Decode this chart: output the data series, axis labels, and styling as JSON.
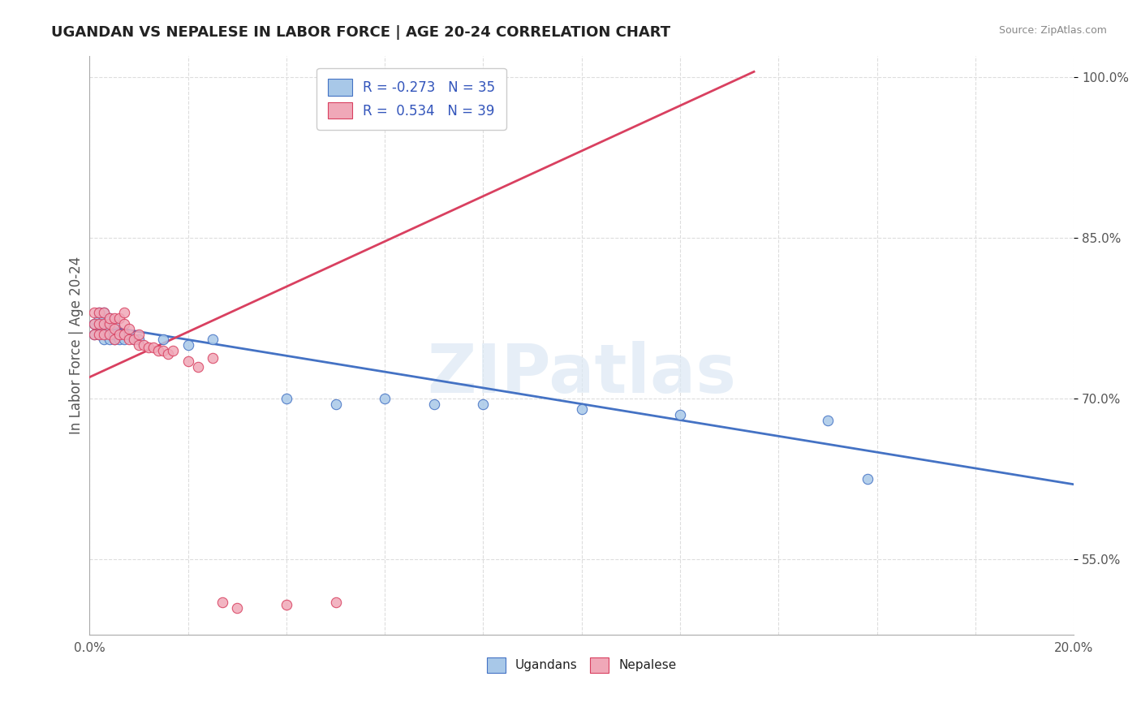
{
  "title": "UGANDAN VS NEPALESE IN LABOR FORCE | AGE 20-24 CORRELATION CHART",
  "source_text": "Source: ZipAtlas.com",
  "ylabel": "In Labor Force | Age 20-24",
  "xlim": [
    0.0,
    0.2
  ],
  "ylim": [
    0.48,
    1.02
  ],
  "xticks": [
    0.0,
    0.02,
    0.04,
    0.06,
    0.08,
    0.1,
    0.12,
    0.14,
    0.16,
    0.18,
    0.2
  ],
  "yticks": [
    0.55,
    0.7,
    0.85,
    1.0
  ],
  "xticklabels": [
    "0.0%",
    "",
    "",
    "",
    "",
    "",
    "",
    "",
    "",
    "",
    "20.0%"
  ],
  "yticklabels": [
    "55.0%",
    "70.0%",
    "85.0%",
    "100.0%"
  ],
  "ugandan_color": "#a8c8e8",
  "nepalese_color": "#f0a8b8",
  "ugandan_line_color": "#4472c4",
  "nepalese_line_color": "#d94060",
  "watermark": "ZIPatlas",
  "ugandan_scatter_x": [
    0.001,
    0.001,
    0.002,
    0.002,
    0.002,
    0.002,
    0.003,
    0.003,
    0.003,
    0.003,
    0.003,
    0.004,
    0.004,
    0.004,
    0.005,
    0.005,
    0.005,
    0.006,
    0.006,
    0.007,
    0.008,
    0.009,
    0.01,
    0.015,
    0.02,
    0.025,
    0.04,
    0.05,
    0.06,
    0.07,
    0.08,
    0.1,
    0.12,
    0.15,
    0.158
  ],
  "ugandan_scatter_y": [
    0.76,
    0.77,
    0.76,
    0.77,
    0.775,
    0.78,
    0.755,
    0.765,
    0.77,
    0.775,
    0.78,
    0.755,
    0.765,
    0.775,
    0.755,
    0.76,
    0.77,
    0.755,
    0.76,
    0.755,
    0.76,
    0.755,
    0.755,
    0.755,
    0.75,
    0.755,
    0.7,
    0.695,
    0.7,
    0.695,
    0.695,
    0.69,
    0.685,
    0.68,
    0.625
  ],
  "nepalese_scatter_x": [
    0.001,
    0.001,
    0.001,
    0.002,
    0.002,
    0.002,
    0.003,
    0.003,
    0.003,
    0.004,
    0.004,
    0.004,
    0.005,
    0.005,
    0.005,
    0.006,
    0.006,
    0.007,
    0.007,
    0.007,
    0.008,
    0.008,
    0.009,
    0.01,
    0.01,
    0.011,
    0.012,
    0.013,
    0.014,
    0.015,
    0.016,
    0.017,
    0.02,
    0.022,
    0.025,
    0.027,
    0.03,
    0.04,
    0.05
  ],
  "nepalese_scatter_y": [
    0.76,
    0.77,
    0.78,
    0.76,
    0.77,
    0.78,
    0.76,
    0.77,
    0.78,
    0.76,
    0.77,
    0.775,
    0.755,
    0.765,
    0.775,
    0.76,
    0.775,
    0.76,
    0.77,
    0.78,
    0.755,
    0.765,
    0.755,
    0.75,
    0.76,
    0.75,
    0.748,
    0.748,
    0.745,
    0.745,
    0.742,
    0.745,
    0.735,
    0.73,
    0.738,
    0.51,
    0.505,
    0.508,
    0.51
  ],
  "ugandan_line_x": [
    0.0,
    0.2
  ],
  "ugandan_line_y": [
    0.77,
    0.62
  ],
  "nepalese_line_x": [
    0.0,
    0.135
  ],
  "nepalese_line_y": [
    0.72,
    1.005
  ],
  "title_fontsize": 13,
  "tick_fontsize": 11,
  "label_fontsize": 12,
  "background_color": "#ffffff",
  "plot_bg_color": "#ffffff",
  "grid_color": "#dddddd"
}
